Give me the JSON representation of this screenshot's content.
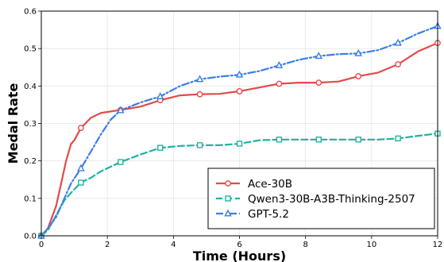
{
  "chart_data": {
    "type": "line",
    "title": "",
    "xlabel": "Time (Hours)",
    "ylabel": "Medal Rate",
    "xlim": [
      0,
      12
    ],
    "ylim": [
      0,
      0.6
    ],
    "x_ticks": [
      "0",
      "2",
      "4",
      "6",
      "8",
      "10",
      "12"
    ],
    "y_ticks": [
      "0.0",
      "0.1",
      "0.2",
      "0.3",
      "0.4",
      "0.5",
      "0.6"
    ],
    "grid": true,
    "legend_position": "lower-right",
    "series": [
      {
        "name": "Ace-30B",
        "color": "#e24a4a",
        "line_style": "solid",
        "marker": "circle",
        "points": [
          [
            0,
            0
          ],
          [
            0.2,
            0.02
          ],
          [
            0.45,
            0.08
          ],
          [
            0.6,
            0.14
          ],
          [
            0.75,
            0.2
          ],
          [
            0.9,
            0.245
          ],
          [
            1.0,
            0.255
          ],
          [
            1.2,
            0.288
          ],
          [
            1.5,
            0.315
          ],
          [
            1.8,
            0.328
          ],
          [
            2.4,
            0.336
          ],
          [
            3.0,
            0.345
          ],
          [
            3.6,
            0.362
          ],
          [
            4.2,
            0.375
          ],
          [
            4.8,
            0.378
          ],
          [
            5.4,
            0.379
          ],
          [
            6.0,
            0.386
          ],
          [
            6.6,
            0.396
          ],
          [
            7.2,
            0.406
          ],
          [
            7.8,
            0.409
          ],
          [
            8.4,
            0.409
          ],
          [
            9.0,
            0.412
          ],
          [
            9.6,
            0.426
          ],
          [
            10.2,
            0.436
          ],
          [
            10.8,
            0.458
          ],
          [
            11.4,
            0.492
          ],
          [
            12.0,
            0.515
          ]
        ],
        "markers": [
          [
            0,
            0
          ],
          [
            1.2,
            0.288
          ],
          [
            2.4,
            0.336
          ],
          [
            3.6,
            0.362
          ],
          [
            4.8,
            0.378
          ],
          [
            6.0,
            0.386
          ],
          [
            7.2,
            0.406
          ],
          [
            8.4,
            0.409
          ],
          [
            9.6,
            0.426
          ],
          [
            10.8,
            0.458
          ],
          [
            12.0,
            0.515
          ]
        ]
      },
      {
        "name": "Qwen3-30B-A3B-Thinking-2507",
        "color": "#20b2a0",
        "line_style": "dashed",
        "marker": "square",
        "points": [
          [
            0,
            0
          ],
          [
            0.2,
            0.015
          ],
          [
            0.45,
            0.055
          ],
          [
            0.7,
            0.095
          ],
          [
            0.9,
            0.115
          ],
          [
            1.2,
            0.142
          ],
          [
            1.5,
            0.155
          ],
          [
            1.8,
            0.172
          ],
          [
            2.4,
            0.197
          ],
          [
            3.0,
            0.217
          ],
          [
            3.6,
            0.235
          ],
          [
            4.2,
            0.24
          ],
          [
            4.8,
            0.242
          ],
          [
            5.4,
            0.242
          ],
          [
            6.0,
            0.246
          ],
          [
            6.6,
            0.255
          ],
          [
            7.2,
            0.257
          ],
          [
            8.4,
            0.257
          ],
          [
            9.6,
            0.257
          ],
          [
            10.2,
            0.257
          ],
          [
            10.8,
            0.26
          ],
          [
            11.4,
            0.267
          ],
          [
            12.0,
            0.273
          ]
        ],
        "markers": [
          [
            0,
            0
          ],
          [
            1.2,
            0.142
          ],
          [
            2.4,
            0.197
          ],
          [
            3.6,
            0.235
          ],
          [
            4.8,
            0.242
          ],
          [
            6.0,
            0.246
          ],
          [
            7.2,
            0.257
          ],
          [
            8.4,
            0.257
          ],
          [
            9.6,
            0.257
          ],
          [
            10.8,
            0.26
          ],
          [
            12.0,
            0.273
          ]
        ]
      },
      {
        "name": "GPT-5.2",
        "color": "#3b7ee8",
        "line_style": "dashdot",
        "marker": "triangle",
        "points": [
          [
            0,
            0
          ],
          [
            0.2,
            0.02
          ],
          [
            0.45,
            0.05
          ],
          [
            0.7,
            0.1
          ],
          [
            0.9,
            0.14
          ],
          [
            1.2,
            0.18
          ],
          [
            1.5,
            0.225
          ],
          [
            1.8,
            0.27
          ],
          [
            2.1,
            0.31
          ],
          [
            2.4,
            0.335
          ],
          [
            3.0,
            0.356
          ],
          [
            3.6,
            0.372
          ],
          [
            4.2,
            0.4
          ],
          [
            4.8,
            0.418
          ],
          [
            5.4,
            0.425
          ],
          [
            6.0,
            0.43
          ],
          [
            6.6,
            0.44
          ],
          [
            7.2,
            0.455
          ],
          [
            7.8,
            0.47
          ],
          [
            8.4,
            0.48
          ],
          [
            9.0,
            0.485
          ],
          [
            9.6,
            0.487
          ],
          [
            10.2,
            0.496
          ],
          [
            10.8,
            0.515
          ],
          [
            11.4,
            0.54
          ],
          [
            12.0,
            0.56
          ]
        ],
        "markers": [
          [
            0,
            0
          ],
          [
            1.2,
            0.18
          ],
          [
            2.4,
            0.335
          ],
          [
            3.6,
            0.372
          ],
          [
            4.8,
            0.418
          ],
          [
            6.0,
            0.43
          ],
          [
            7.2,
            0.455
          ],
          [
            8.4,
            0.48
          ],
          [
            9.6,
            0.487
          ],
          [
            10.8,
            0.515
          ],
          [
            12.0,
            0.56
          ]
        ]
      }
    ]
  }
}
